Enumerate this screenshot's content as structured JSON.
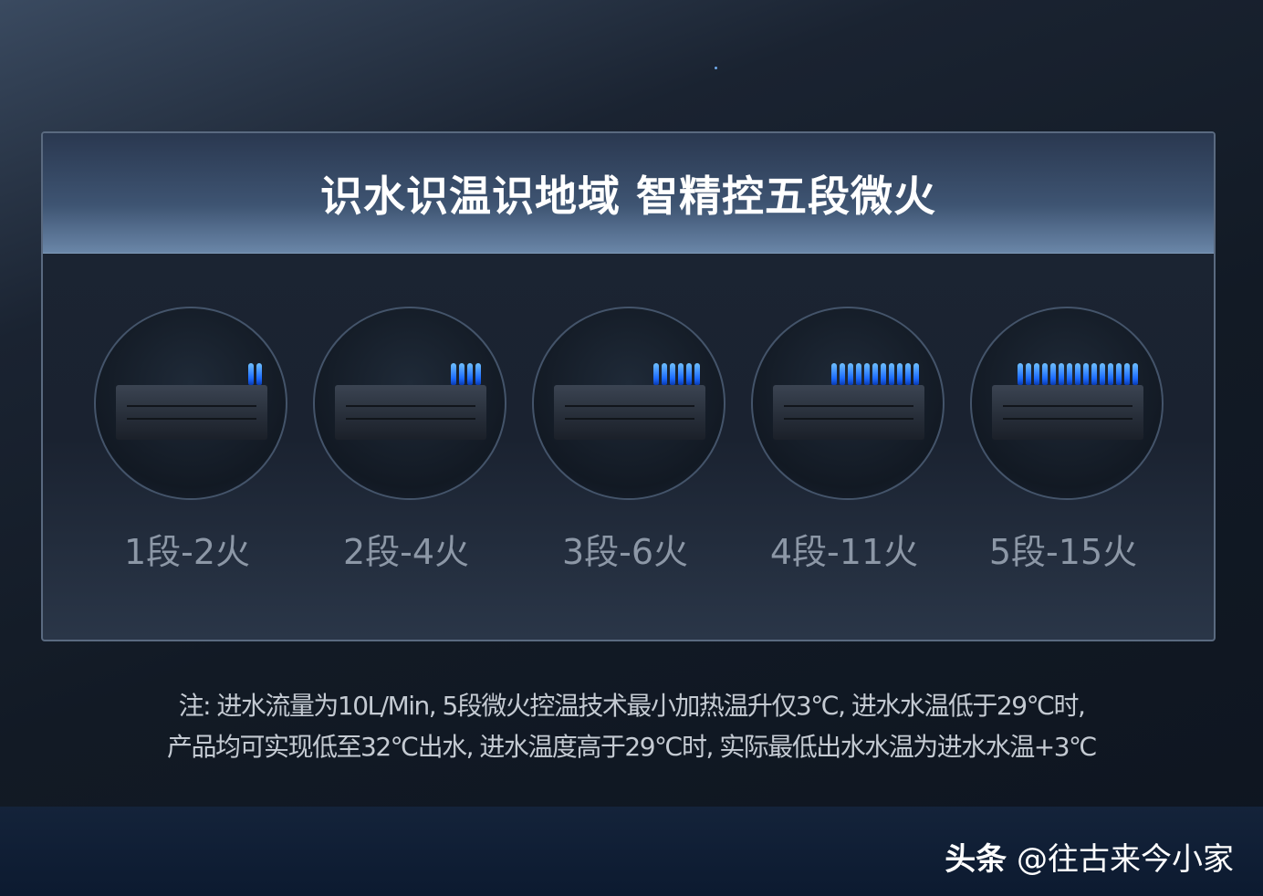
{
  "title": "识水识温识地域 智精控五段微火",
  "stages": [
    {
      "label": "1段-2火",
      "flames": 2
    },
    {
      "label": "2段-4火",
      "flames": 4
    },
    {
      "label": "3段-6火",
      "flames": 6
    },
    {
      "label": "4段-11火",
      "flames": 11
    },
    {
      "label": "5段-15火",
      "flames": 15
    }
  ],
  "note": {
    "line1": "注: 进水流量为10L/Min, 5段微火控温技术最小加热温升仅3℃, 进水水温低于29℃时,",
    "line2": "产品均可实现低至32℃出水, 进水温度高于29℃时, 实际最低出水水温为进水水温+3℃"
  },
  "watermark": {
    "brand": "头条",
    "handle": "@往古来今小家"
  },
  "colors": {
    "flame": "#1c6cff",
    "background": "#121a25"
  }
}
